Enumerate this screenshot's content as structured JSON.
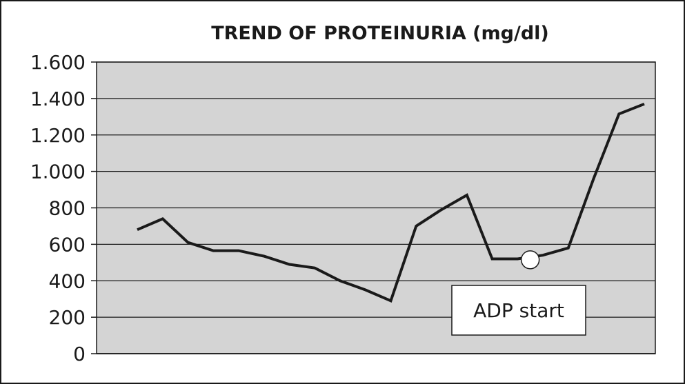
{
  "chart_data": {
    "type": "line",
    "title": "TREND OF PROTEINURIA (mg/dl)",
    "xlabel": "",
    "ylabel": "",
    "ylim": [
      0,
      1600
    ],
    "yticks": [
      0,
      200,
      400,
      600,
      800,
      1000,
      1200,
      1400,
      1600
    ],
    "ytick_labels": [
      "0",
      "200",
      "400",
      "600",
      "800",
      "1.000",
      "1.200",
      "1.400",
      "1.600"
    ],
    "grid": "horizontal",
    "plot_background": "#d4d4d4",
    "line_color": "#1a1a1a",
    "series": [
      {
        "values": [
          680,
          740,
          610,
          565,
          565,
          535,
          490,
          470,
          400,
          350,
          290,
          700,
          790,
          870,
          520,
          520,
          540,
          580,
          960,
          1315,
          1370
        ]
      }
    ],
    "marker": {
      "point_index": 15,
      "shape": "open-circle"
    },
    "annotation": {
      "text": "ADP start"
    }
  }
}
